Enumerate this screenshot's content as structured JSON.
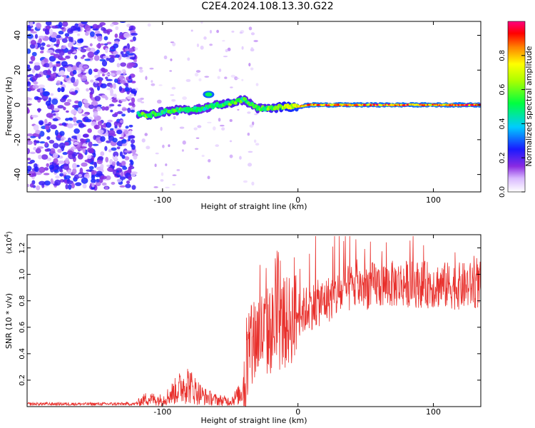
{
  "title": "C2E4.2024.108.13.30.G22",
  "chart_data": [
    {
      "type": "heatmap",
      "xlabel": "Height of straight line (km)",
      "ylabel": "Frequency (Hz)",
      "xlim": [
        -200,
        135
      ],
      "ylim": [
        -50,
        48
      ],
      "xticks": [
        "-100",
        "0",
        "100"
      ],
      "xtick_values": [
        -100,
        0,
        100
      ],
      "yticks": [
        "40",
        "20",
        "0",
        "-20",
        "-40"
      ],
      "ytick_values": [
        40,
        20,
        0,
        -20,
        -40
      ],
      "colorbar": {
        "label": "Normalized spectral amplitude",
        "ticks": [
          "0.0",
          "0.2",
          "0.4",
          "0.6",
          "0.8"
        ],
        "tick_values": [
          0.0,
          0.2,
          0.4,
          0.6,
          0.8
        ],
        "range": [
          0,
          1
        ]
      },
      "features": [
        {
          "name": "noise region",
          "x": [
            -200,
            -120
          ],
          "y": [
            -48,
            48
          ],
          "amplitude": 0.25
        },
        {
          "name": "signal track",
          "points": [
            [
              -118,
              -5
            ],
            [
              -110,
              -6
            ],
            [
              -100,
              -4
            ],
            [
              -90,
              -3
            ],
            [
              -80,
              -3
            ],
            [
              -70,
              -2
            ],
            [
              -60,
              0
            ],
            [
              -50,
              1
            ],
            [
              -40,
              3
            ],
            [
              -30,
              -2
            ],
            [
              -20,
              -2
            ],
            [
              -10,
              -1
            ],
            [
              0,
              -1
            ],
            [
              10,
              0
            ],
            [
              50,
              0
            ],
            [
              100,
              0
            ],
            [
              135,
              0
            ]
          ],
          "amplitude": [
            0.55,
            0.6,
            0.55,
            0.55,
            0.55,
            0.5,
            0.55,
            0.6,
            0.55,
            0.55,
            0.6,
            0.7,
            0.8,
            0.9,
            0.9,
            0.9,
            0.9
          ]
        },
        {
          "name": "secondary blob",
          "x": -66,
          "y": 6,
          "amplitude": 0.5
        }
      ]
    },
    {
      "type": "line",
      "xlabel": "Height of straight line (km)",
      "ylabel": "SNR (10 * v/v)",
      "multiplier": "(x10",
      "multiplier_exp": "4",
      "multiplier_close": ")",
      "xlim": [
        -200,
        135
      ],
      "ylim": [
        0,
        1.3
      ],
      "xticks": [
        "-100",
        "0",
        "100"
      ],
      "xtick_values": [
        -100,
        0,
        100
      ],
      "yticks": [
        "1.2",
        "1.0",
        "0.8",
        "0.6",
        "0.4",
        "0.2"
      ],
      "ytick_values": [
        1.2,
        1.0,
        0.8,
        0.6,
        0.4,
        0.2
      ],
      "series": [
        {
          "color": "#e8302c",
          "envelope": [
            [
              -200,
              0.02
            ],
            [
              -120,
              0.02
            ],
            [
              -112,
              0.06
            ],
            [
              -100,
              0.05
            ],
            [
              -90,
              0.12
            ],
            [
              -82,
              0.18
            ],
            [
              -78,
              0.14
            ],
            [
              -70,
              0.08
            ],
            [
              -60,
              0.05
            ],
            [
              -50,
              0.04
            ],
            [
              -42,
              0.1
            ],
            [
              -36,
              0.35
            ],
            [
              -30,
              0.55
            ],
            [
              -25,
              0.55
            ],
            [
              -20,
              0.58
            ],
            [
              -10,
              0.62
            ],
            [
              0,
              0.7
            ],
            [
              10,
              0.76
            ],
            [
              20,
              0.8
            ],
            [
              30,
              0.85
            ],
            [
              40,
              0.9
            ],
            [
              60,
              0.92
            ],
            [
              80,
              0.93
            ],
            [
              100,
              0.92
            ],
            [
              120,
              0.91
            ],
            [
              135,
              0.92
            ]
          ]
        }
      ]
    }
  ]
}
